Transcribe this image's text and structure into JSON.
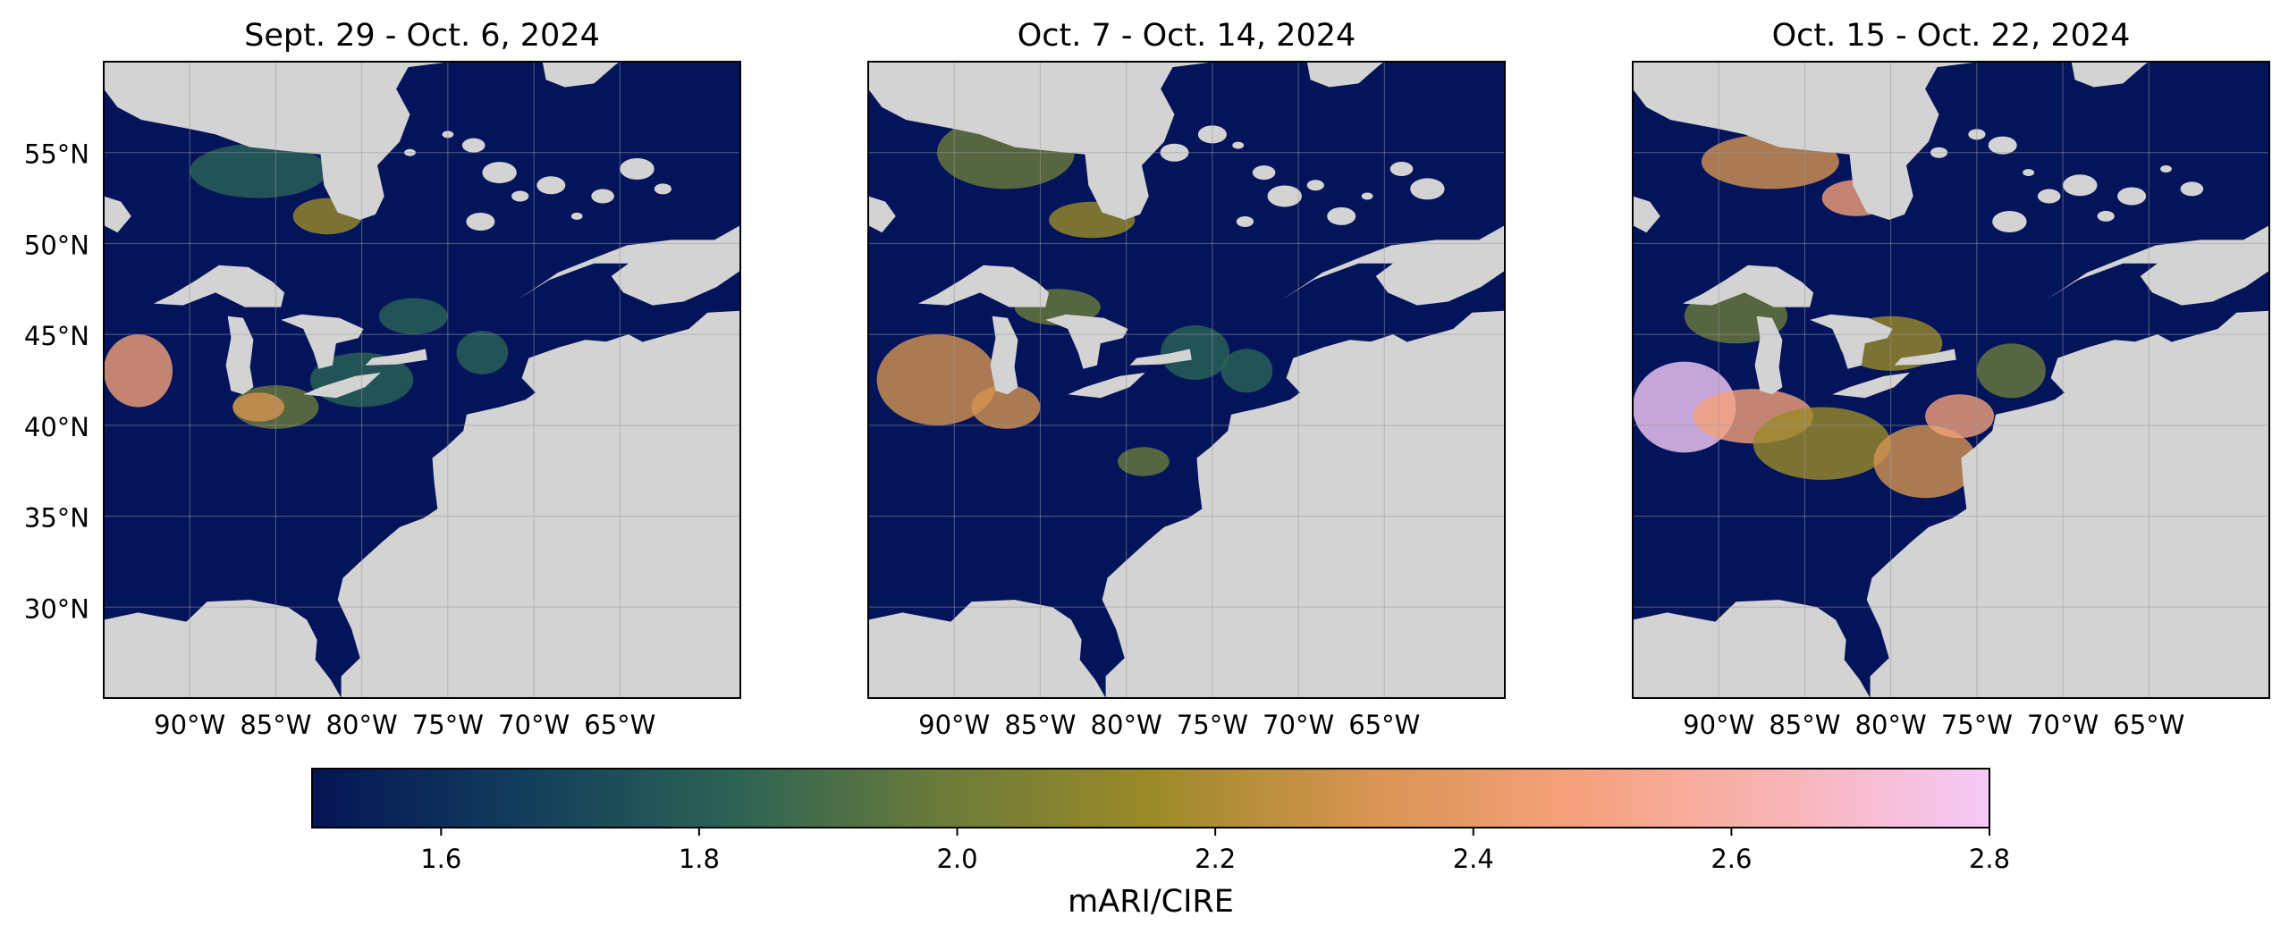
{
  "panels": [
    {
      "title": "Sept. 29 - Oct. 6, 2024"
    },
    {
      "title": "Oct. 7 - Oct. 14, 2024"
    },
    {
      "title": "Oct. 15 - Oct. 22, 2024"
    }
  ],
  "map": {
    "lon_range": [
      -95,
      -58
    ],
    "lat_range": [
      25,
      60
    ],
    "lat_ticks": [
      "55°N",
      "50°N",
      "45°N",
      "40°N",
      "35°N",
      "30°N"
    ],
    "lon_ticks": [
      "90°W",
      "85°W",
      "80°W",
      "75°W",
      "70°W",
      "65°W"
    ],
    "land_nodata_color": "#d3d3d3",
    "low_value_color": "#03145a",
    "gridlines": true
  },
  "colorbar": {
    "label": "mARI/CIRE",
    "range": [
      1.5,
      2.8
    ],
    "ticks": [
      "1.6",
      "1.8",
      "2.0",
      "2.2",
      "2.4",
      "2.6",
      "2.8"
    ],
    "colormap": [
      "#041455",
      "#133d5c",
      "#2b6355",
      "#6b7b3a",
      "#9b8a28",
      "#d69450",
      "#f5a07a",
      "#f8b4b5",
      "#f6caf8"
    ],
    "orientation": "horizontal"
  }
}
